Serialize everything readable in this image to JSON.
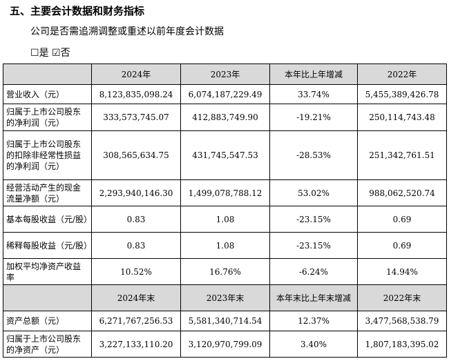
{
  "heading": "五、主要会计数据和财务指标",
  "question": "公司是否需追溯调整或重述以前年度会计数据",
  "options": {
    "yes_box": "☐",
    "yes": "是",
    "no_box": "☑",
    "no": "否"
  },
  "header1": [
    "",
    "2024年",
    "2023年",
    "本年比上年增减",
    "2022年"
  ],
  "rows1": [
    {
      "label": "营业收入（元）",
      "v2024": "8,123,835,098.24",
      "v2023": "6,074,187,229.49",
      "change": "33.74%",
      "v2022": "5,455,389,426.78"
    },
    {
      "label": "归属于上市公司股东的净利润（元）",
      "v2024": "333,573,745.07",
      "v2023": "412,883,749.90",
      "change": "-19.21%",
      "v2022": "250,114,743.48"
    },
    {
      "label": "归属于上市公司股东的扣除非经常性损益的净利润（元）",
      "v2024": "308,565,634.75",
      "v2023": "431,745,547.53",
      "change": "-28.53%",
      "v2022": "251,342,761.51"
    },
    {
      "label": "经营活动产生的现金流量净额（元）",
      "v2024": "2,293,940,146.30",
      "v2023": "1,499,078,788.12",
      "change": "53.02%",
      "v2022": "988,062,520.74"
    },
    {
      "label": "基本每股收益（元/股）",
      "v2024": "0.83",
      "v2023": "1.08",
      "change": "-23.15%",
      "v2022": "0.69"
    },
    {
      "label": "稀释每股收益（元/股）",
      "v2024": "0.83",
      "v2023": "1.08",
      "change": "-23.15%",
      "v2022": "0.69"
    },
    {
      "label": "加权平均净资产收益率",
      "v2024": "10.52%",
      "v2023": "16.76%",
      "change": "-6.24%",
      "v2022": "14.94%"
    }
  ],
  "header2": [
    "",
    "2024年末",
    "2023年末",
    "本年末比上年末增减",
    "2022年末"
  ],
  "rows2": [
    {
      "label": "资产总额（元）",
      "v2024": "6,271,767,256.53",
      "v2023": "5,581,340,714.54",
      "change": "12.37%",
      "v2022": "3,477,568,538.79"
    },
    {
      "label": "归属于上市公司股东的净资产（元）",
      "v2024": "3,227,133,110.20",
      "v2023": "3,120,970,799.09",
      "change": "3.40%",
      "v2022": "1,807,183,395.02"
    }
  ]
}
